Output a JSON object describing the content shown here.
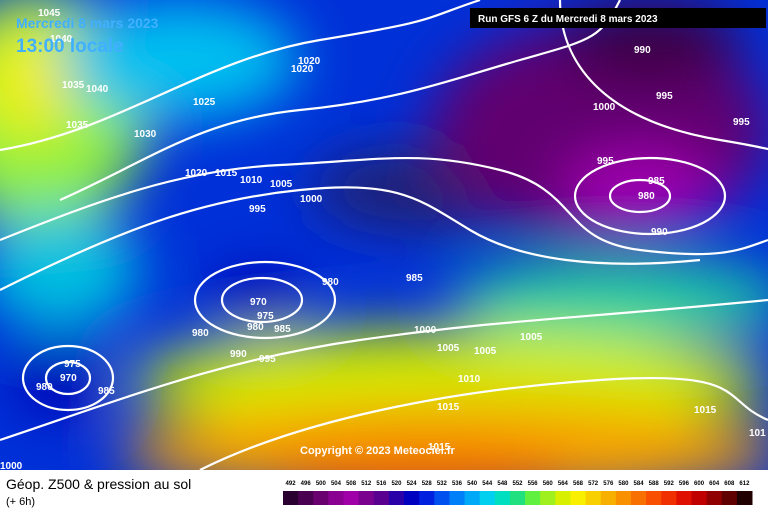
{
  "header": {
    "date": "Mercredi 8 mars 2023",
    "time": "13:00 locale",
    "run": "Run GFS 6 Z du Mercredi 8 mars 2023"
  },
  "copyright": "Copyright © 2023 Meteociel.fr",
  "footer": {
    "title": "Géop. Z500 & pression au sol",
    "subtitle": "(+ 6h)"
  },
  "isobar_labels": [
    1045,
    1040,
    1035,
    1040,
    1035,
    1025,
    1030,
    1020,
    1020,
    1020,
    1015,
    1010,
    1005,
    1000,
    995,
    980,
    985,
    970,
    975,
    980,
    980,
    985,
    990,
    995,
    1000,
    1005,
    1005,
    1005,
    1010,
    1015,
    1015,
    1015,
    1000,
    975,
    970,
    980,
    985,
    990,
    995,
    995,
    1000,
    995,
    985,
    980,
    990,
    101
  ],
  "colorbar": {
    "labels": [
      492,
      496,
      500,
      504,
      508,
      512,
      516,
      520,
      524,
      528,
      532,
      536,
      540,
      544,
      548,
      552,
      556,
      560,
      564,
      568,
      572,
      576,
      580,
      584,
      588,
      592,
      596,
      600,
      604,
      608,
      612
    ],
    "colors": [
      "#2a0030",
      "#4a0050",
      "#6a0070",
      "#8a0090",
      "#a000a8",
      "#7a0090",
      "#5a0090",
      "#2a00a8",
      "#0000c0",
      "#0020e0",
      "#0050f0",
      "#0080f8",
      "#00a8f8",
      "#00d0f0",
      "#00e0c0",
      "#20e080",
      "#60f040",
      "#a0f020",
      "#d8f000",
      "#f8f000",
      "#f8d000",
      "#f8b000",
      "#f89000",
      "#f87000",
      "#f85000",
      "#f03000",
      "#e01000",
      "#c00000",
      "#900000",
      "#600000",
      "#200000"
    ]
  }
}
